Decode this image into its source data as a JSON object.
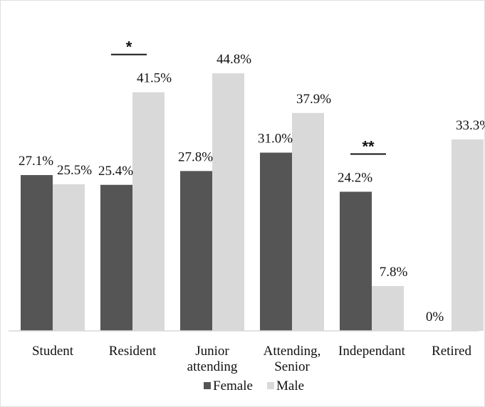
{
  "chart_data": {
    "type": "bar",
    "title": "",
    "xlabel": "",
    "ylabel": "",
    "ylim": [
      0,
      50
    ],
    "grid": false,
    "legend_position": "bottom",
    "categories": [
      [
        "Student"
      ],
      [
        "Resident"
      ],
      [
        "Junior",
        "attending"
      ],
      [
        "Attending,",
        "Senior"
      ],
      [
        "Independant"
      ],
      [
        "Retired"
      ]
    ],
    "series": [
      {
        "name": "Female",
        "color": "#555555",
        "values": [
          27.1,
          25.4,
          27.8,
          31.0,
          24.2,
          0
        ],
        "labels": [
          "27.1%",
          "25.4%",
          "27.8%",
          "31.0%",
          "24.2%",
          "0%"
        ]
      },
      {
        "name": "Male",
        "color": "#d9d9d9",
        "values": [
          25.5,
          41.5,
          44.8,
          37.9,
          7.8,
          33.3
        ],
        "labels": [
          "25.5%",
          "41.5%",
          "44.8%",
          "37.9%",
          "7.8%",
          "33.3%"
        ]
      }
    ],
    "significance": [
      {
        "category_index": 1,
        "label": "*"
      },
      {
        "category_index": 4,
        "label": "**"
      }
    ]
  }
}
